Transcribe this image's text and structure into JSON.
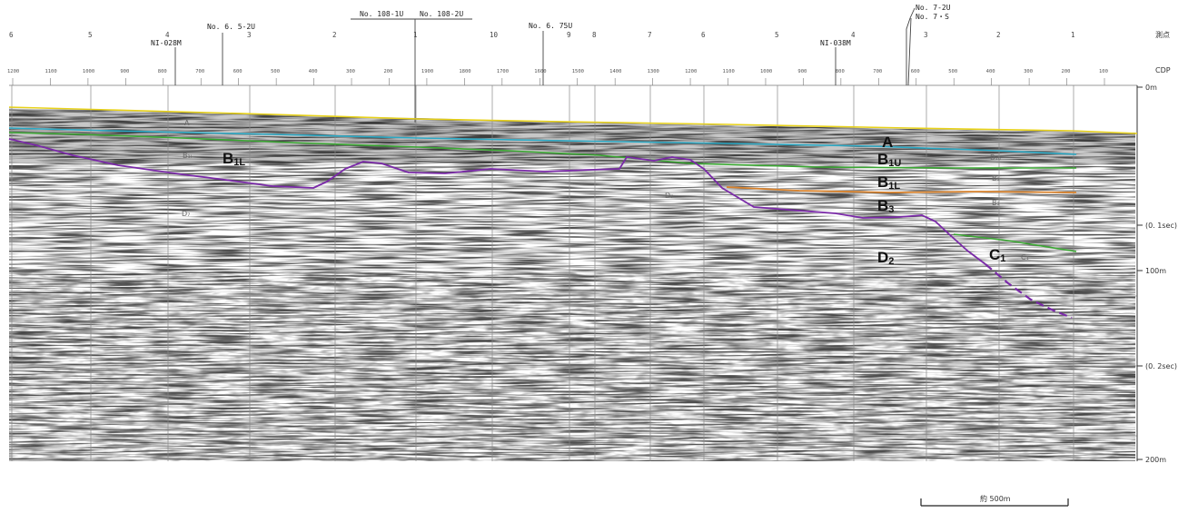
{
  "row_titles": {
    "survey": "測点",
    "cdp": "CDP"
  },
  "survey_points": [
    "6",
    "5",
    "4",
    "3",
    "2",
    "1",
    "10",
    "9",
    "8",
    "7",
    "6",
    "5",
    "4",
    "3",
    "2",
    "1"
  ],
  "cdp_ticks": [
    "1200",
    "1100",
    "1000",
    "900",
    "800",
    "700",
    "600",
    "500",
    "400",
    "300",
    "200",
    "1900",
    "1800",
    "1700",
    "1600",
    "1500",
    "1400",
    "1300",
    "1200",
    "1100",
    "1000",
    "900",
    "800",
    "700",
    "600",
    "500",
    "400",
    "300",
    "200",
    "100"
  ],
  "line_labels": {
    "l_028m": "NI-028M",
    "l_65_2u": "No. 6. 5-2U",
    "l_108_1u": "No. 108-1U",
    "l_108_2u": "No. 108-2U",
    "l_675u": "No. 6. 75U",
    "l_038m": "NI-038M",
    "l_7_2u": "No. 7-2U",
    "l_7_s": "No. 7・S"
  },
  "right_axis": [
    "0m",
    "(0. 1sec)",
    "100m",
    "(0. 2sec)",
    "200m"
  ],
  "horizons": {
    "A": "A",
    "B1U": {
      "main": "B",
      "sub": "1U"
    },
    "B1L": {
      "main": "B",
      "sub": "1L"
    },
    "B3": {
      "main": "B",
      "sub": "3"
    },
    "D2": {
      "main": "D",
      "sub": "2"
    },
    "C1": {
      "main": "C",
      "sub": "1"
    },
    "B1L_left": {
      "main": "B",
      "sub": "1L"
    }
  },
  "faint_labels": [
    "A",
    "B₁ₗ",
    "D₇",
    "D₇",
    "B₁ᵤ",
    "B₃",
    "B₃",
    "C₁"
  ],
  "scale_label": "約 500m",
  "colors": {
    "yellow": "#e8d21a",
    "cyan": "#2aa8c4",
    "green": "#3aa832",
    "purple": "#7a2aa8",
    "orange": "#d9822b"
  }
}
